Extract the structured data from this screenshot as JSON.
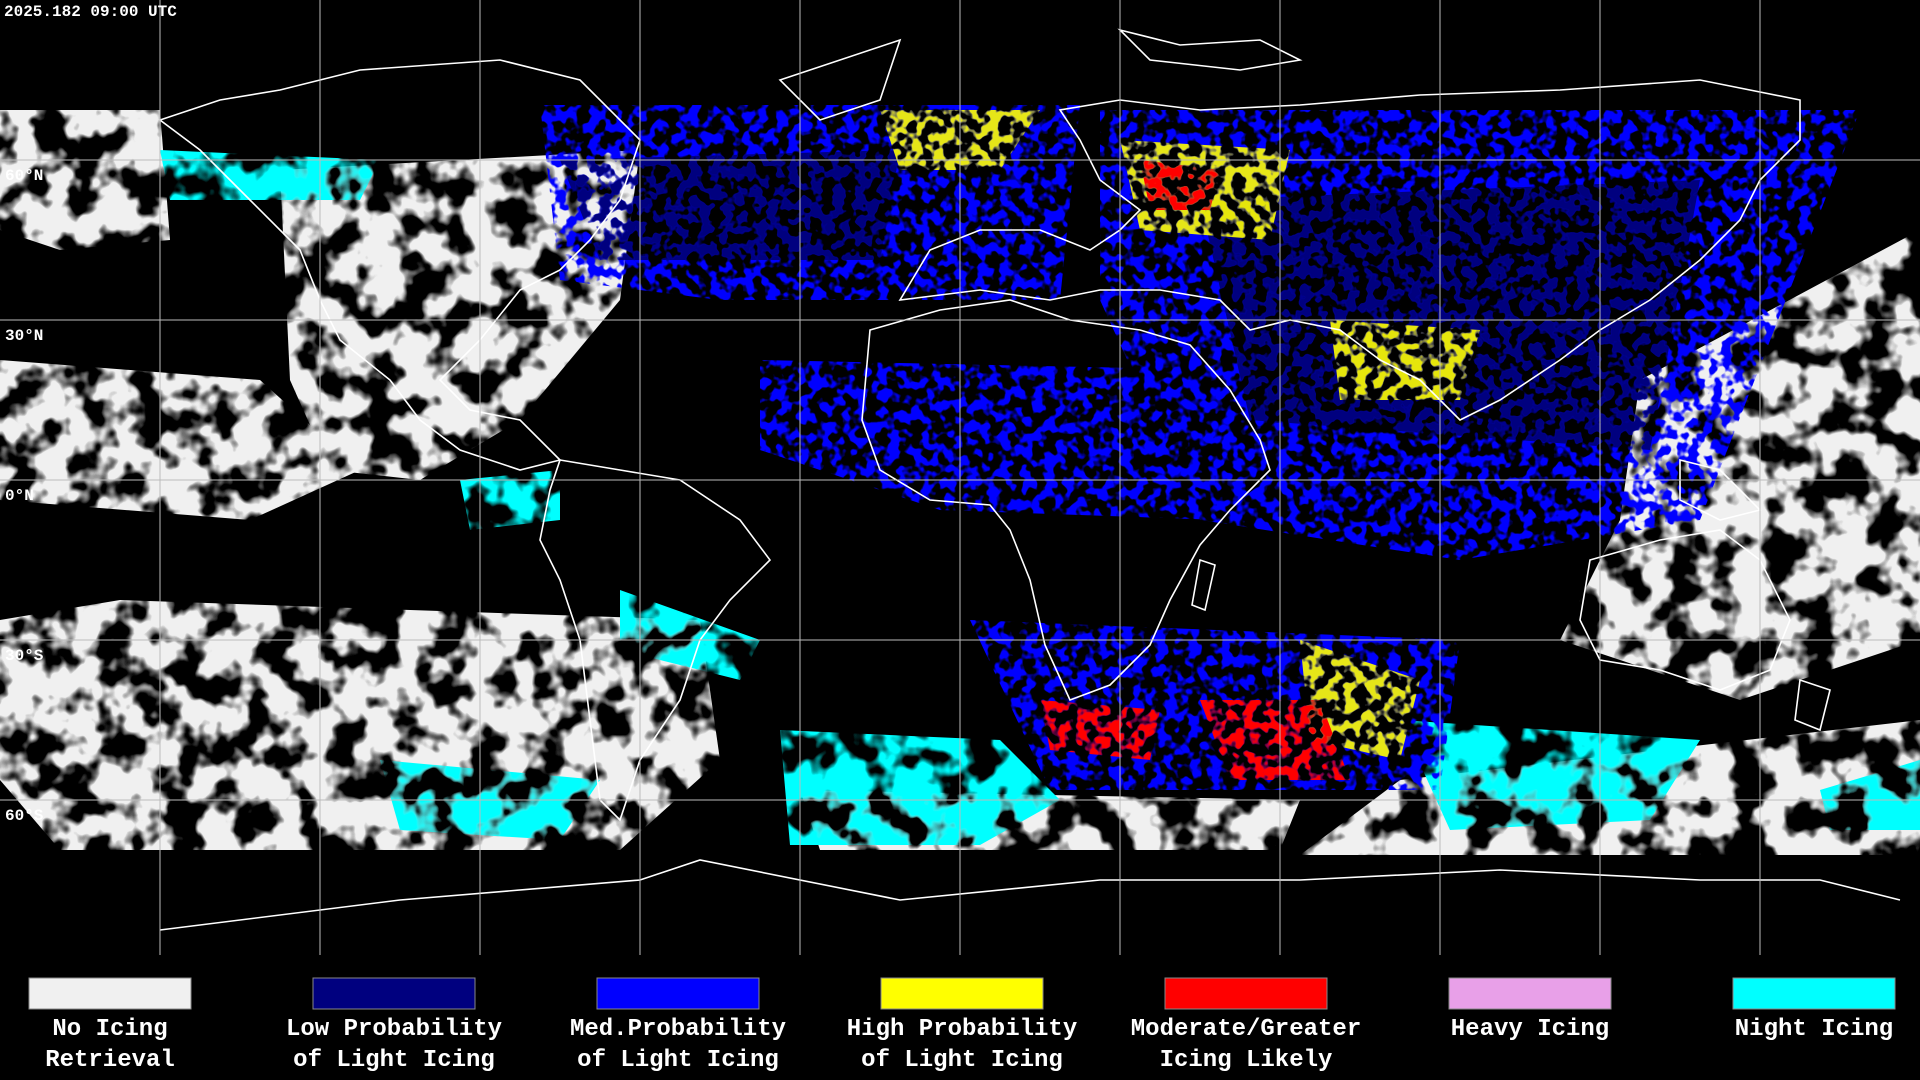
{
  "timestamp": "2025.182 09:00 UTC",
  "latitude_labels": [
    "60°N",
    "30°N",
    "0°N",
    "30°S",
    "60°S"
  ],
  "legend": [
    {
      "color": "#f0f0f0",
      "lines": [
        "No Icing",
        "Retrieval"
      ]
    },
    {
      "color": "#00007f",
      "lines": [
        "Low Probability",
        "of Light Icing"
      ]
    },
    {
      "color": "#0000ff",
      "lines": [
        "Med.Probability",
        "of Light Icing"
      ]
    },
    {
      "color": "#ffff00",
      "lines": [
        "High Probability",
        "of Light Icing"
      ]
    },
    {
      "color": "#ff0000",
      "lines": [
        "Moderate/Greater",
        "Icing Likely"
      ]
    },
    {
      "color": "#e8a0e8",
      "lines": [
        "Heavy Icing"
      ]
    },
    {
      "color": "#00ffff",
      "lines": [
        "Night Icing"
      ]
    }
  ]
}
